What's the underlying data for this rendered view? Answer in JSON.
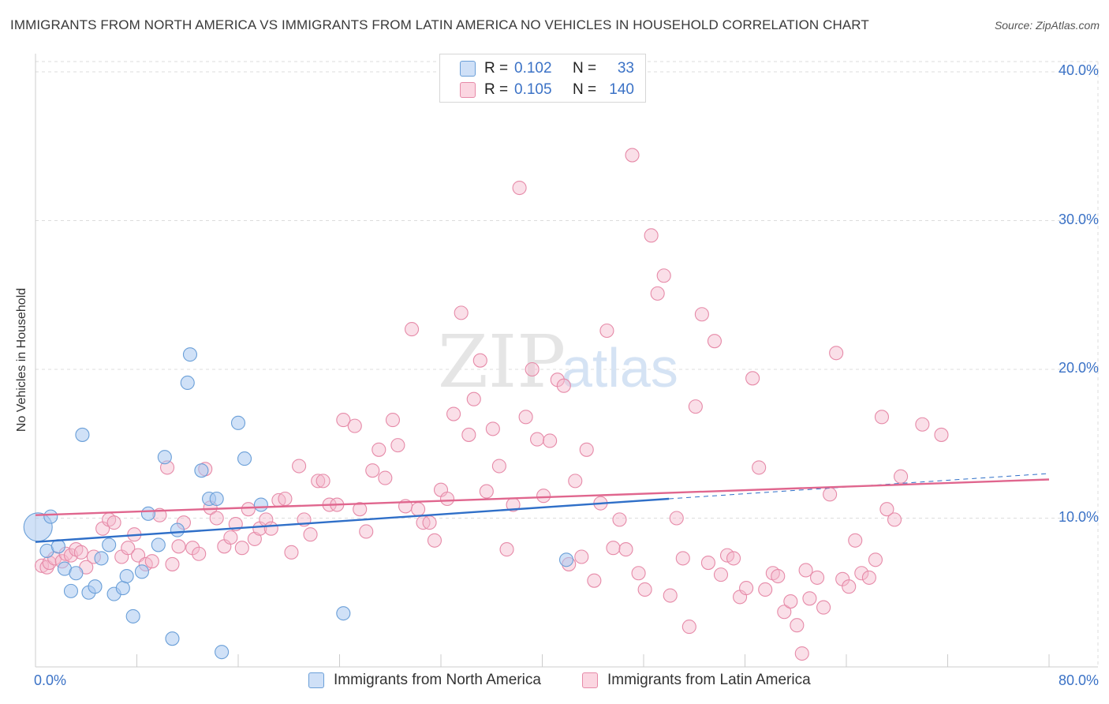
{
  "title": "IMMIGRANTS FROM NORTH AMERICA VS IMMIGRANTS FROM LATIN AMERICA NO VEHICLES IN HOUSEHOLD CORRELATION CHART",
  "source": "Source: ZipAtlas.com",
  "watermark": {
    "zip": "ZIP",
    "atlas": "atlas"
  },
  "legend_top": {
    "rows": [
      {
        "r_label": "R =",
        "r_value": "0.102",
        "n_label": "N =",
        "n_value": "33",
        "color": "#a9c8f0"
      },
      {
        "r_label": "R =",
        "r_value": "0.105",
        "n_label": "N =",
        "n_value": "140",
        "color": "#f5b8cb"
      }
    ]
  },
  "legend_bottom": {
    "items": [
      {
        "label": "Immigrants from North America",
        "color": "#a9c8f0"
      },
      {
        "label": "Immigrants from Latin America",
        "color": "#f5b8cb"
      }
    ]
  },
  "colors": {
    "north_fill": "rgba(169,200,240,0.55)",
    "north_stroke": "#6a9fd8",
    "north_line": "#2f6fc8",
    "latin_fill": "rgba(245,184,203,0.45)",
    "latin_stroke": "#e68aa8",
    "latin_line": "#e0668e",
    "grid": "#dddddd",
    "axis_text": "#3b72c6"
  },
  "chart_data": {
    "type": "scatter",
    "title": "IMMIGRANTS FROM NORTH AMERICA VS IMMIGRANTS FROM LATIN AMERICA NO VEHICLES IN HOUSEHOLD CORRELATION CHART",
    "xlabel": "",
    "ylabel": "No Vehicles in Household",
    "xlim": [
      0,
      80
    ],
    "ylim": [
      0,
      40
    ],
    "x_tick_labels": [
      "0.0%",
      "80.0%"
    ],
    "y_ticks": [
      10,
      20,
      30,
      40
    ],
    "y_tick_labels": [
      "10.0%",
      "20.0%",
      "30.0%",
      "40.0%"
    ],
    "grid": true,
    "legend_position": "top-center",
    "series": [
      {
        "name": "Immigrants from North America",
        "R": 0.102,
        "N": 33,
        "trend": {
          "x": [
            0,
            50
          ],
          "y": [
            8.4,
            11.3
          ],
          "dashed_to": [
            80,
            13.0
          ]
        },
        "points": [
          [
            0.2,
            9.4,
            3
          ],
          [
            1.2,
            10.1,
            1
          ],
          [
            0.9,
            7.8,
            1
          ],
          [
            1.8,
            8.1,
            1
          ],
          [
            2.3,
            6.6,
            1
          ],
          [
            2.8,
            5.1,
            1
          ],
          [
            3.2,
            6.3,
            1
          ],
          [
            3.7,
            15.6,
            1
          ],
          [
            4.2,
            5.0,
            1
          ],
          [
            4.7,
            5.4,
            1
          ],
          [
            5.2,
            7.3,
            1
          ],
          [
            5.8,
            8.2,
            1
          ],
          [
            6.2,
            4.9,
            1
          ],
          [
            6.9,
            5.3,
            1
          ],
          [
            7.2,
            6.1,
            1
          ],
          [
            7.7,
            3.4,
            1
          ],
          [
            8.4,
            6.4,
            1
          ],
          [
            8.9,
            10.3,
            1
          ],
          [
            9.7,
            8.2,
            1
          ],
          [
            10.2,
            14.1,
            1
          ],
          [
            10.8,
            1.9,
            1
          ],
          [
            11.2,
            9.2,
            1
          ],
          [
            12.0,
            19.1,
            1
          ],
          [
            12.2,
            21.0,
            1
          ],
          [
            13.1,
            13.2,
            1
          ],
          [
            13.7,
            11.3,
            1
          ],
          [
            14.3,
            11.3,
            1
          ],
          [
            14.7,
            1.0,
            1
          ],
          [
            16.0,
            16.4,
            1
          ],
          [
            16.5,
            14.0,
            1
          ],
          [
            17.8,
            10.9,
            1
          ],
          [
            24.3,
            3.6,
            1
          ],
          [
            41.9,
            7.2,
            1
          ]
        ]
      },
      {
        "name": "Immigrants from Latin America",
        "R": 0.105,
        "N": 140,
        "trend": {
          "x": [
            0,
            80
          ],
          "y": [
            10.2,
            12.6
          ]
        },
        "points": [
          [
            0.5,
            6.8,
            1
          ],
          [
            0.9,
            6.7,
            1
          ],
          [
            1.1,
            7.0,
            1
          ],
          [
            1.5,
            7.3,
            1
          ],
          [
            2.1,
            7.1,
            1
          ],
          [
            2.4,
            7.6,
            1
          ],
          [
            2.8,
            7.5,
            1
          ],
          [
            3.2,
            7.9,
            1
          ],
          [
            3.6,
            7.7,
            1
          ],
          [
            4.0,
            6.7,
            1
          ],
          [
            4.6,
            7.4,
            1
          ],
          [
            5.3,
            9.3,
            1
          ],
          [
            5.8,
            9.9,
            1
          ],
          [
            6.2,
            9.7,
            1
          ],
          [
            6.8,
            7.4,
            1
          ],
          [
            7.3,
            8.0,
            1
          ],
          [
            7.8,
            8.9,
            1
          ],
          [
            8.1,
            7.5,
            1
          ],
          [
            8.7,
            6.9,
            1
          ],
          [
            9.2,
            7.1,
            1
          ],
          [
            9.8,
            10.2,
            1
          ],
          [
            10.4,
            13.4,
            1
          ],
          [
            10.8,
            6.9,
            1
          ],
          [
            11.3,
            8.1,
            1
          ],
          [
            11.7,
            9.7,
            1
          ],
          [
            12.4,
            8.0,
            1
          ],
          [
            12.9,
            7.6,
            1
          ],
          [
            13.4,
            13.3,
            1
          ],
          [
            13.8,
            10.7,
            1
          ],
          [
            14.3,
            10.0,
            1
          ],
          [
            14.9,
            8.1,
            1
          ],
          [
            15.4,
            8.7,
            1
          ],
          [
            15.8,
            9.6,
            1
          ],
          [
            16.3,
            8.0,
            1
          ],
          [
            16.8,
            10.6,
            1
          ],
          [
            17.3,
            8.6,
            1
          ],
          [
            17.7,
            9.3,
            1
          ],
          [
            18.2,
            9.9,
            1
          ],
          [
            18.6,
            9.3,
            1
          ],
          [
            19.2,
            11.2,
            1
          ],
          [
            19.7,
            11.3,
            1
          ],
          [
            20.2,
            7.7,
            1
          ],
          [
            20.8,
            13.5,
            1
          ],
          [
            21.2,
            9.9,
            1
          ],
          [
            21.7,
            8.9,
            1
          ],
          [
            22.3,
            12.5,
            1
          ],
          [
            22.7,
            12.5,
            1
          ],
          [
            23.2,
            10.9,
            1
          ],
          [
            23.8,
            10.9,
            1
          ],
          [
            24.3,
            16.6,
            1
          ],
          [
            25.2,
            16.2,
            1
          ],
          [
            25.6,
            10.6,
            1
          ],
          [
            26.1,
            9.1,
            1
          ],
          [
            26.6,
            13.2,
            1
          ],
          [
            27.1,
            14.6,
            1
          ],
          [
            27.6,
            12.7,
            1
          ],
          [
            28.2,
            16.6,
            1
          ],
          [
            28.6,
            14.9,
            1
          ],
          [
            29.2,
            10.8,
            1
          ],
          [
            29.7,
            22.7,
            1
          ],
          [
            30.2,
            10.6,
            1
          ],
          [
            30.6,
            9.7,
            1
          ],
          [
            31.1,
            9.7,
            1
          ],
          [
            31.5,
            8.5,
            1
          ],
          [
            32.0,
            11.9,
            1
          ],
          [
            32.5,
            11.3,
            1
          ],
          [
            33.0,
            17.0,
            1
          ],
          [
            33.6,
            23.8,
            1
          ],
          [
            34.2,
            15.6,
            1
          ],
          [
            34.6,
            18.0,
            1
          ],
          [
            35.1,
            20.6,
            1
          ],
          [
            35.6,
            11.8,
            1
          ],
          [
            36.1,
            16.0,
            1
          ],
          [
            36.6,
            13.5,
            1
          ],
          [
            37.2,
            7.9,
            1
          ],
          [
            37.7,
            10.9,
            1
          ],
          [
            38.2,
            32.2,
            1
          ],
          [
            38.7,
            16.8,
            1
          ],
          [
            39.2,
            20.0,
            1
          ],
          [
            39.6,
            15.3,
            1
          ],
          [
            40.1,
            11.5,
            1
          ],
          [
            40.6,
            15.2,
            1
          ],
          [
            41.2,
            19.3,
            1
          ],
          [
            41.7,
            18.9,
            1
          ],
          [
            42.1,
            6.9,
            1
          ],
          [
            42.6,
            12.5,
            1
          ],
          [
            43.1,
            7.4,
            1
          ],
          [
            43.5,
            14.6,
            1
          ],
          [
            44.1,
            5.8,
            1
          ],
          [
            44.6,
            11.0,
            1
          ],
          [
            45.1,
            22.6,
            1
          ],
          [
            45.6,
            8.0,
            1
          ],
          [
            46.1,
            9.9,
            1
          ],
          [
            46.6,
            7.9,
            1
          ],
          [
            47.1,
            34.4,
            1
          ],
          [
            47.6,
            6.3,
            1
          ],
          [
            48.1,
            5.2,
            1
          ],
          [
            48.6,
            29.0,
            1
          ],
          [
            49.1,
            25.1,
            1
          ],
          [
            49.6,
            26.3,
            1
          ],
          [
            50.1,
            4.8,
            1
          ],
          [
            50.6,
            10.0,
            1
          ],
          [
            51.1,
            7.3,
            1
          ],
          [
            51.6,
            2.7,
            1
          ],
          [
            52.1,
            17.5,
            1
          ],
          [
            52.6,
            23.7,
            1
          ],
          [
            53.1,
            7.0,
            1
          ],
          [
            53.6,
            21.9,
            1
          ],
          [
            54.1,
            6.2,
            1
          ],
          [
            54.6,
            7.5,
            1
          ],
          [
            55.1,
            7.3,
            1
          ],
          [
            55.6,
            4.7,
            1
          ],
          [
            56.1,
            5.3,
            1
          ],
          [
            56.6,
            19.4,
            1
          ],
          [
            57.1,
            13.4,
            1
          ],
          [
            57.6,
            5.2,
            1
          ],
          [
            58.2,
            6.3,
            1
          ],
          [
            58.6,
            6.1,
            1
          ],
          [
            59.1,
            3.7,
            1
          ],
          [
            59.6,
            4.4,
            1
          ],
          [
            60.1,
            2.8,
            1
          ],
          [
            60.5,
            0.9,
            1
          ],
          [
            61.1,
            4.6,
            1
          ],
          [
            61.7,
            6.0,
            1
          ],
          [
            62.2,
            4.0,
            1
          ],
          [
            62.7,
            11.6,
            1
          ],
          [
            63.2,
            21.1,
            1
          ],
          [
            63.7,
            5.9,
            1
          ],
          [
            64.2,
            5.4,
            1
          ],
          [
            64.7,
            8.5,
            1
          ],
          [
            65.2,
            6.3,
            1
          ],
          [
            65.8,
            6.0,
            1
          ],
          [
            66.3,
            7.2,
            1
          ],
          [
            66.8,
            16.8,
            1
          ],
          [
            67.2,
            10.6,
            1
          ],
          [
            67.8,
            9.9,
            1
          ],
          [
            68.3,
            12.8,
            1
          ],
          [
            70.0,
            16.3,
            1
          ],
          [
            71.5,
            15.6,
            1
          ],
          [
            60.8,
            6.5,
            1
          ]
        ]
      }
    ]
  }
}
